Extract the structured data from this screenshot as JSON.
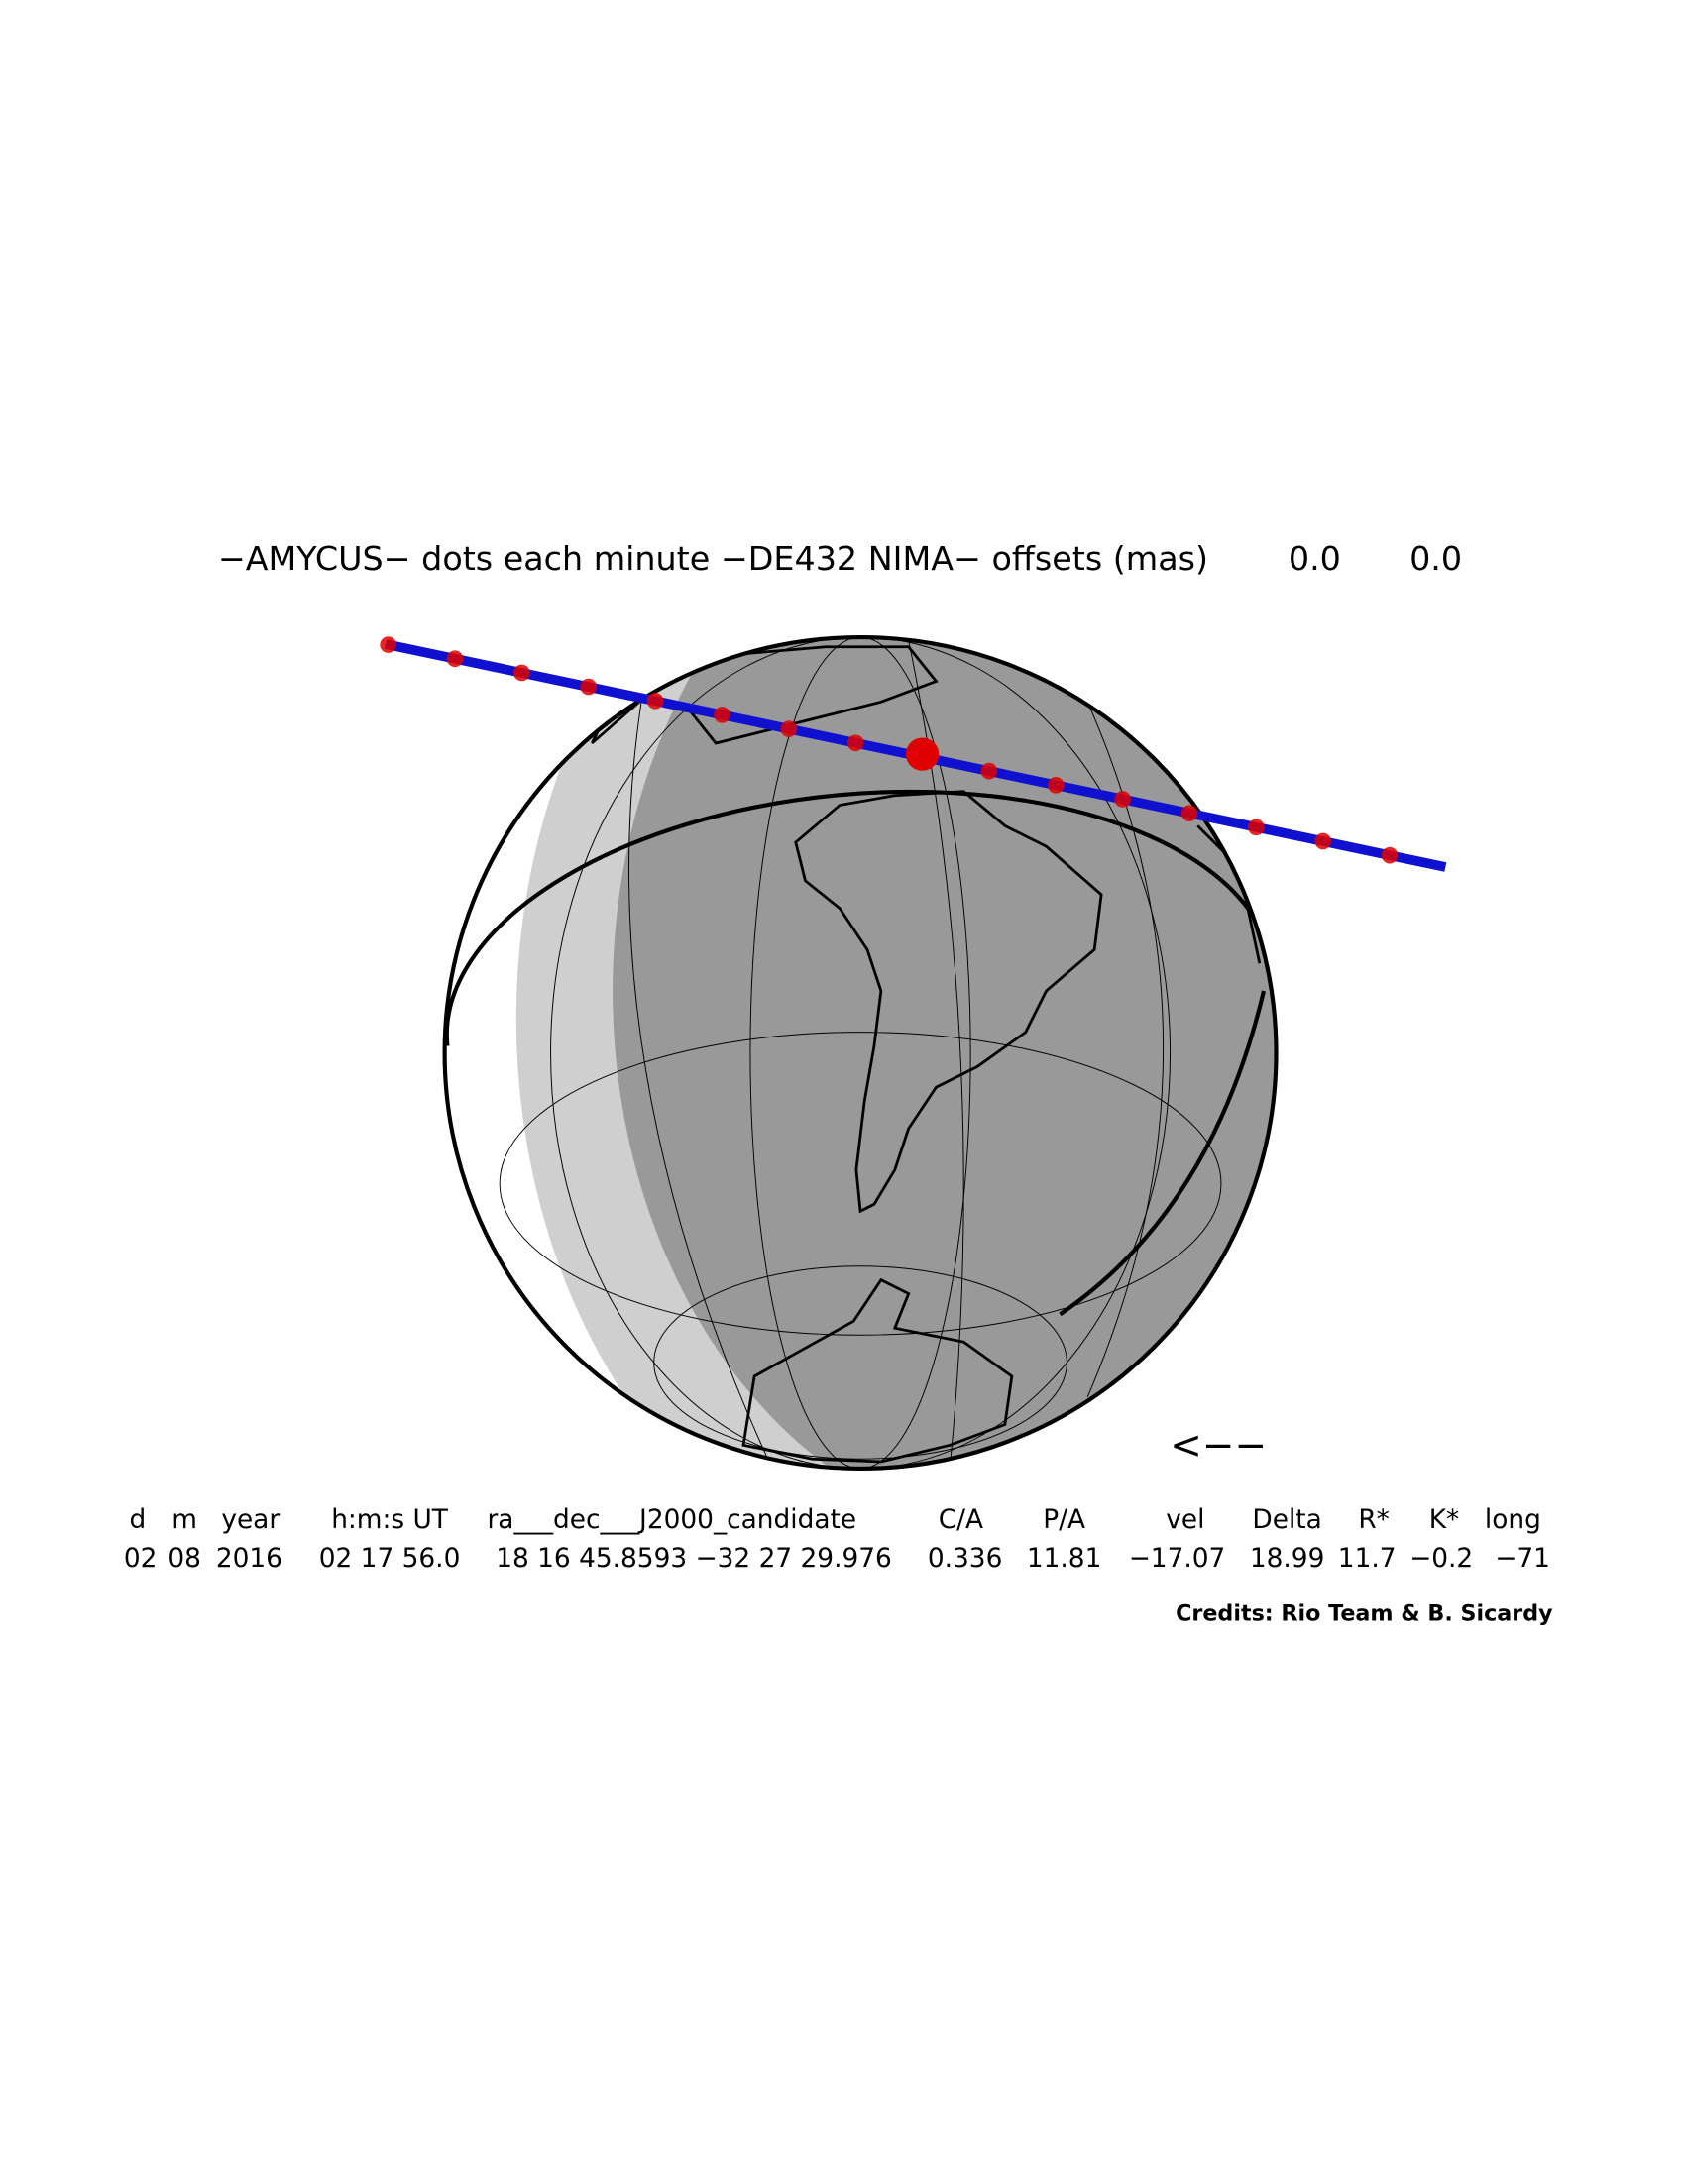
{
  "header": {
    "title": "−AMYCUS− dots each minute −DE432 NIMA− offsets (mas)",
    "offsets": [
      "0.0",
      "0.0"
    ]
  },
  "map": {
    "direction": "<−−"
  },
  "table": {
    "headers": [
      "d",
      "m",
      "year",
      "h:m:s UT",
      "ra___dec___J2000_candidate",
      "C/A",
      "P/A",
      "vel",
      "Delta",
      "R*",
      "K*",
      "long"
    ],
    "values": [
      "02",
      "08",
      "2016",
      "02 17 56.0",
      "18 16 45.8593 −32 27 29.976",
      "0.336",
      "11.81",
      "−17.07",
      "18.99",
      "11.7",
      "−0.2",
      "−71"
    ]
  },
  "footer": {
    "credits": "Credits: Rio Team & B. Sicardy"
  }
}
